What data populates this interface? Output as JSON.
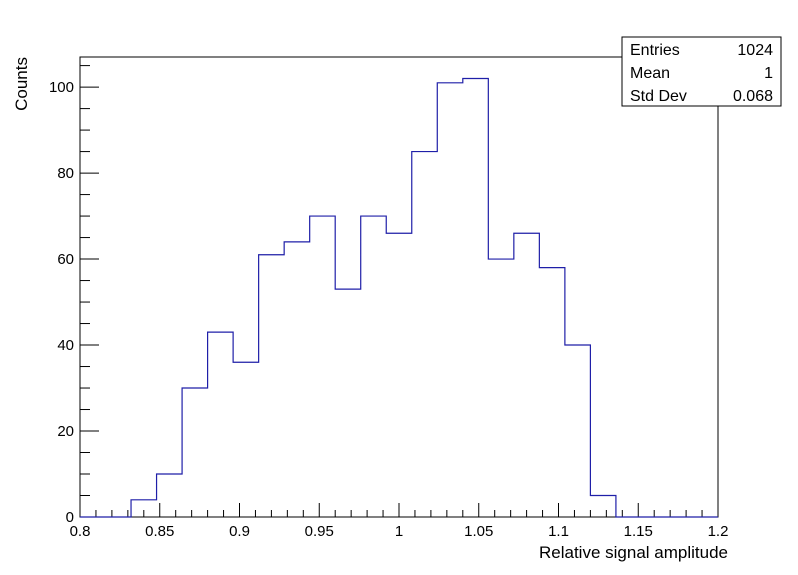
{
  "chart_data": {
    "type": "bar",
    "style": "step-histogram",
    "xlabel": "Relative signal amplitude",
    "ylabel": "Counts",
    "xlim": [
      0.8,
      1.2
    ],
    "ylim": [
      0,
      107
    ],
    "bin_width": 0.016,
    "bins_low_edge_start": 0.8,
    "values": [
      0,
      0,
      4,
      10,
      30,
      43,
      36,
      61,
      64,
      70,
      53,
      70,
      66,
      85,
      101,
      102,
      60,
      66,
      58,
      40,
      5,
      0,
      0,
      0,
      0
    ],
    "x_ticks": [
      0.8,
      0.85,
      0.9,
      0.95,
      1,
      1.05,
      1.1,
      1.15,
      1.2
    ],
    "x_tick_labels": [
      "0.8",
      "0.85",
      "0.9",
      "0.95",
      "1",
      "1.05",
      "1.1",
      "1.15",
      "1.2"
    ],
    "y_ticks": [
      0,
      20,
      40,
      60,
      80,
      100
    ],
    "y_tick_labels": [
      "0",
      "20",
      "40",
      "60",
      "80",
      "100"
    ],
    "line_color": "#1f1fa8",
    "grid": false,
    "stats": [
      {
        "label": "Entries",
        "value": "1024"
      },
      {
        "label": "Mean",
        "value": "1"
      },
      {
        "label": "Std Dev",
        "value": "0.068"
      }
    ]
  }
}
